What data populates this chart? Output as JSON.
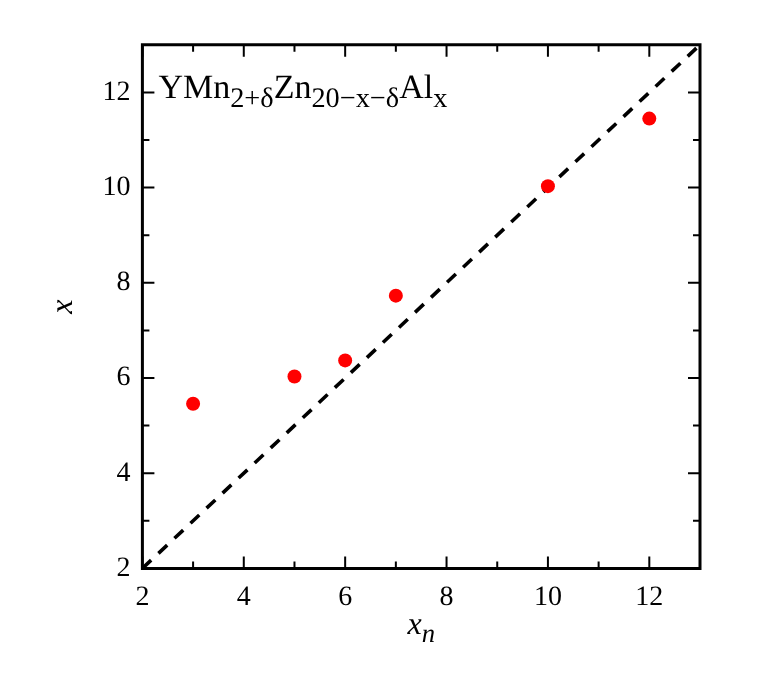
{
  "chart_data": {
    "type": "scatter",
    "xlabel": "x$_{n}$",
    "ylabel": "x",
    "annotations": [
      "YMn$_{2+δ}$Zn$_{20−x−δ}$Al$_{x}$"
    ],
    "x": [
      3,
      5,
      6,
      7,
      10,
      12
    ],
    "series": [
      {
        "type": "scatter",
        "color": "#ff0000",
        "marker": "circle",
        "values": [
          5.46,
          6.03,
          6.37,
          7.73,
          10.03,
          11.45
        ]
      },
      {
        "type": "line",
        "color": "#000000",
        "line_style": "dashed",
        "marker": "none",
        "x": [
          2,
          13
        ],
        "values": [
          2,
          13
        ]
      }
    ],
    "xlim": [
      2,
      13
    ],
    "ylim": [
      2,
      13
    ],
    "xticks": [
      2,
      4,
      6,
      8,
      10,
      12
    ],
    "yticks": [
      2,
      4,
      6,
      8,
      10,
      12
    ],
    "grid": false,
    "legend": false
  }
}
